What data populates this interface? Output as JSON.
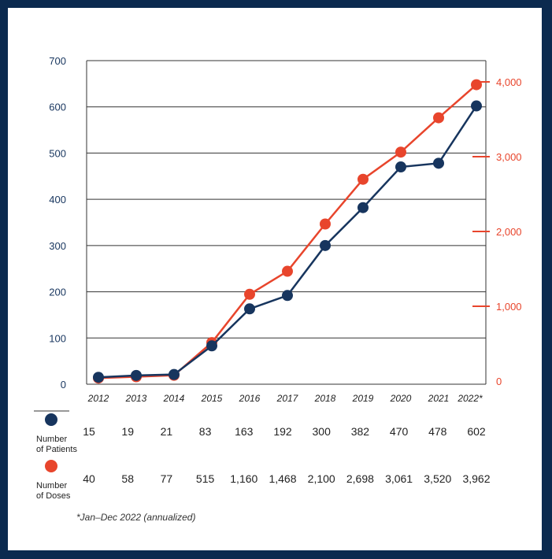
{
  "chart_data": {
    "type": "line",
    "categories": [
      "2012",
      "2013",
      "2014",
      "2015",
      "2016",
      "2017",
      "2018",
      "2019",
      "2020",
      "2021",
      "2022*"
    ],
    "y_left": {
      "ticks": [
        "0",
        "100",
        "200",
        "300",
        "400",
        "500",
        "600",
        "700"
      ],
      "ylim": [
        0,
        700
      ]
    },
    "y_right": {
      "ticks": [
        "0",
        "1,000",
        "2,000",
        "3,000",
        "4,000"
      ],
      "ylim": [
        0,
        4000
      ]
    },
    "series": [
      {
        "name_line1": "Number",
        "name_line2": "of Patients",
        "axis": "left",
        "color": "#17355e",
        "values": [
          15,
          19,
          21,
          83,
          163,
          192,
          300,
          382,
          470,
          478,
          602
        ],
        "labels": [
          "15",
          "19",
          "21",
          "83",
          "163",
          "192",
          "300",
          "382",
          "470",
          "478",
          "602"
        ]
      },
      {
        "name_line1": "Number",
        "name_line2": "of Doses",
        "axis": "right",
        "color": "#e8452c",
        "values": [
          40,
          58,
          77,
          515,
          1160,
          1468,
          2100,
          2698,
          3061,
          3520,
          3962
        ],
        "labels": [
          "40",
          "58",
          "77",
          "515",
          "1,160",
          "1,468",
          "2,100",
          "2,698",
          "3,061",
          "3,520",
          "3,962"
        ]
      }
    ],
    "grid": true,
    "footnote": "*Jan–Dec 2022 (annualized)"
  }
}
